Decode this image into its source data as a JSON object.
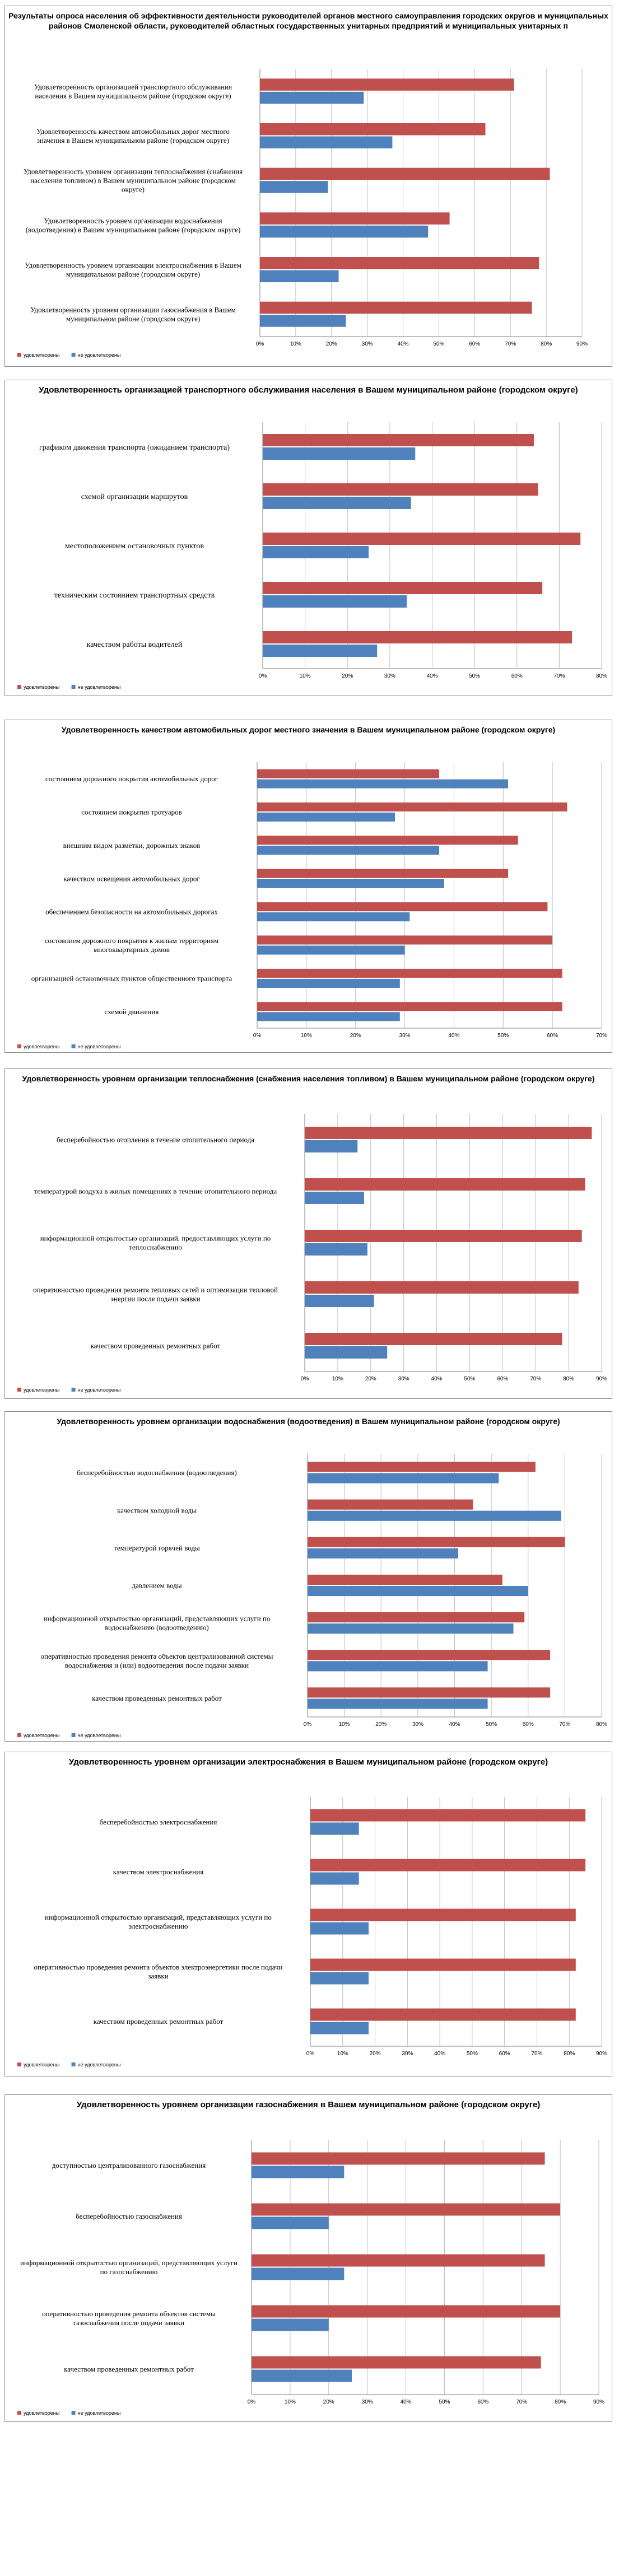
{
  "chart_data": [
    {
      "type": "bar",
      "orientation": "horizontal",
      "title": "Результаты опроса населения об эффективности деятельности руководителей органов местного самоуправления городских округов и муниципальных районов Смоленской области, руководителей областных государственных унитарных предприятий и муниципальных унитарных п",
      "categories": [
        "Удовлетворенность организацией транспортного обслуживания населения в Вашем муниципальном районе (городском округе)",
        "Удовлетворенность качеством автомобильных дорог местного значения в Вашем муниципальном районе (городском округе)",
        "Удовлетворенность уровнем организации теплоснабжения (снабжения населения топливом) в Вашем муниципальном районе (городском округе)",
        "Удовлетворенность уровнем организации водоснабжения (водоотведения) в Вашем муниципальном районе (городском округе)",
        "Удовлетворенность уровнем организации электроснабжения в Вашем муниципальном районе (городском округе)",
        "Удовлетворенность уровнем организации газоснабжения в Вашем муниципальном районе (городском округе)"
      ],
      "series": [
        {
          "name": "удовлетворены",
          "color": "#c0504d",
          "values": [
            71,
            63,
            81,
            53,
            78,
            76
          ]
        },
        {
          "name": "не удовлетворены",
          "color": "#4f81bd",
          "values": [
            29,
            37,
            19,
            47,
            22,
            24
          ]
        }
      ],
      "xlim": [
        0,
        90
      ],
      "ticks": [
        0,
        10,
        20,
        30,
        40,
        50,
        60,
        70,
        80,
        90
      ],
      "tick_labels": [
        "0%",
        "10%",
        "20%",
        "30%",
        "40%",
        "50%",
        "60%",
        "70%",
        "80%",
        "90%"
      ],
      "grid": true,
      "legend": "bottom-left"
    },
    {
      "type": "bar",
      "orientation": "horizontal",
      "title": "Удовлетворенность организацией транспортного обслуживания населения в Вашем муниципальном районе (городском округе)",
      "categories": [
        "графиком движения транспорта (ожиданием транспорта)",
        "схемой организации маршрутов",
        "местоположением остановочных пунктов",
        "техническим состоянием транспортных средств",
        "качеством работы водителей"
      ],
      "series": [
        {
          "name": "удовлетворены",
          "color": "#c0504d",
          "values": [
            64,
            65,
            75,
            66,
            73
          ]
        },
        {
          "name": "не удовлетворены",
          "color": "#4f81bd",
          "values": [
            36,
            35,
            25,
            34,
            27
          ]
        }
      ],
      "xlim": [
        0,
        80
      ],
      "ticks": [
        0,
        10,
        20,
        30,
        40,
        50,
        60,
        70,
        80
      ],
      "tick_labels": [
        "0%",
        "10%",
        "20%",
        "30%",
        "40%",
        "50%",
        "60%",
        "70%",
        "80%"
      ],
      "grid": true,
      "legend": "bottom-left"
    },
    {
      "type": "bar",
      "orientation": "horizontal",
      "title": "Удовлетворенность качеством автомобильных дорог местного значения в Вашем муниципальном районе (городском округе)",
      "categories": [
        "состоянием дорожного покрытия автомобильных дорог",
        "состоянием покрытия тротуаров",
        "внешним видом разметки, дорожных знаков",
        "качеством освещения автомобильных дорог",
        "обеспечением безопасности на автомобильных дорогах",
        "состоянием дорожного покрытия к жилым территориям многоквартирных домов",
        "организацией остановочных пунктов общественного транспорта",
        "схемой движения"
      ],
      "series": [
        {
          "name": "удовлетворены",
          "color": "#c0504d",
          "values": [
            37,
            63,
            53,
            51,
            59,
            60,
            62,
            62
          ]
        },
        {
          "name": "не удовлетворены",
          "color": "#4f81bd",
          "values": [
            51,
            28,
            37,
            38,
            31,
            30,
            29,
            29
          ]
        }
      ],
      "xlim": [
        0,
        70
      ],
      "ticks": [
        0,
        10,
        20,
        30,
        40,
        50,
        60,
        70
      ],
      "tick_labels": [
        "0%",
        "10%",
        "20%",
        "30%",
        "40%",
        "50%",
        "60%",
        "70%"
      ],
      "grid": true,
      "legend": "bottom-left"
    },
    {
      "type": "bar",
      "orientation": "horizontal",
      "title": "Удовлетворенность уровнем организации теплоснабжения (снабжения населения топливом) в Вашем муниципальном районе (городском округе)",
      "categories": [
        "бесперебойностью отопления в течение отопительного периода",
        "температурой воздуха в жилых помещениях в течение отопительного периода",
        "информационной открытостью организаций, предоставляющих услуги по теплоснабжению",
        "оперативностью проведения ремонта тепловых сетей и оптимизации тепловой энергии после подачи заявки",
        "качеством проведенных ремонтных работ"
      ],
      "series": [
        {
          "name": "удовлетворены",
          "color": "#c0504d",
          "values": [
            87,
            85,
            84,
            83,
            78
          ]
        },
        {
          "name": "не удовлетворены",
          "color": "#4f81bd",
          "values": [
            16,
            18,
            19,
            21,
            25
          ]
        }
      ],
      "xlim": [
        0,
        90
      ],
      "ticks": [
        0,
        10,
        20,
        30,
        40,
        50,
        60,
        70,
        80,
        90
      ],
      "tick_labels": [
        "0%",
        "10%",
        "20%",
        "30%",
        "40%",
        "50%",
        "60%",
        "70%",
        "80%",
        "90%"
      ],
      "grid": true,
      "legend": "bottom-left"
    },
    {
      "type": "bar",
      "orientation": "horizontal",
      "title": "Удовлетворенность уровнем организации водоснабжения (водоотведения) в Вашем муниципальном районе (городском округе)",
      "categories": [
        "бесперебойностью водоснабжения (водоотведения)",
        "качеством холодной воды",
        "температурой горячей воды",
        "давлением воды",
        "информационной открытостью организаций, представляющих услуги по водоснабжению (водоотведению)",
        "оперативностью проведения ремонта объектов централизованной системы водоснабжения и (или) водоотведения после подачи заявки",
        "качеством проведенных ремонтных работ"
      ],
      "series": [
        {
          "name": "удовлетворены",
          "color": "#c0504d",
          "values": [
            62,
            45,
            70,
            53,
            59,
            66,
            66
          ]
        },
        {
          "name": "не удовлетворены",
          "color": "#4f81bd",
          "values": [
            52,
            69,
            41,
            60,
            56,
            49,
            49
          ]
        }
      ],
      "xlim": [
        0,
        80
      ],
      "ticks": [
        0,
        10,
        20,
        30,
        40,
        50,
        60,
        70,
        80
      ],
      "tick_labels": [
        "0%",
        "10%",
        "20%",
        "30%",
        "40%",
        "50%",
        "60%",
        "70%",
        "80%"
      ],
      "grid": true,
      "legend": "bottom-left"
    },
    {
      "type": "bar",
      "orientation": "horizontal",
      "title": "Удовлетворенность уровнем организации электроснабжения в Вашем муниципальном районе (городском округе)",
      "categories": [
        "бесперебойностью электроснабжения",
        "качеством электроснабжения",
        "информационной открытостью организаций, представляющих услуги по электроснабжению",
        "оперативностью проведения ремонта объектов электроэнергетики после подачи заявки",
        "качеством проведенных ремонтных работ"
      ],
      "series": [
        {
          "name": "удовлетворены",
          "color": "#c0504d",
          "values": [
            85,
            85,
            82,
            82,
            82
          ]
        },
        {
          "name": "не удовлетворены",
          "color": "#4f81bd",
          "values": [
            15,
            15,
            18,
            18,
            18
          ]
        }
      ],
      "xlim": [
        0,
        90
      ],
      "ticks": [
        0,
        10,
        20,
        30,
        40,
        50,
        60,
        70,
        80,
        90
      ],
      "tick_labels": [
        "0%",
        "10%",
        "20%",
        "30%",
        "40%",
        "50%",
        "60%",
        "70%",
        "80%",
        "90%"
      ],
      "grid": true,
      "legend": "bottom-left"
    },
    {
      "type": "bar",
      "orientation": "horizontal",
      "title": "Удовлетворенность уровнем организации газоснабжения в Вашем муниципальном районе (городском округе)",
      "categories": [
        "доступностью централизованного газоснабжения",
        "бесперебойностью газоснабжения",
        "информационной открытостью организаций, представляющих услуги по газоснабжению",
        "оперативностью проведения ремонта объектов системы газоснабжения после подачи заявки",
        "качеством проведенных ремонтных работ"
      ],
      "series": [
        {
          "name": "удовлетворены",
          "color": "#c0504d",
          "values": [
            76,
            80,
            76,
            80,
            75
          ]
        },
        {
          "name": "не удовлетворены",
          "color": "#4f81bd",
          "values": [
            24,
            20,
            24,
            20,
            26
          ]
        }
      ],
      "xlim": [
        0,
        90
      ],
      "ticks": [
        0,
        10,
        20,
        30,
        40,
        50,
        60,
        70,
        80,
        90
      ],
      "tick_labels": [
        "0%",
        "10%",
        "20%",
        "30%",
        "40%",
        "50%",
        "60%",
        "70%",
        "80%",
        "90%"
      ],
      "grid": true,
      "legend": "bottom-left"
    }
  ]
}
